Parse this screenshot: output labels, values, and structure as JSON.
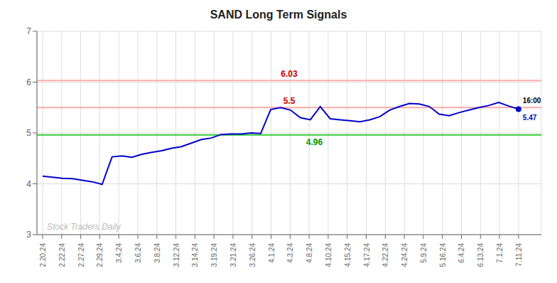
{
  "chart_data": {
    "type": "line",
    "title": "SAND Long Term Signals",
    "x": [
      0,
      0.5208333333333334,
      1.0416666666666667,
      1.5625,
      2.0833333333333335,
      2.6041666666666665,
      3.125,
      3.6458333333333335,
      4.166666666666667,
      4.6875,
      5.208333333333333,
      5.729166666666667,
      6.25,
      6.770833333333333,
      7.291666666666667,
      7.8125,
      8.333333333333334,
      8.854166666666666,
      9.375,
      9.895833333333334,
      10.416666666666666,
      10.9375,
      11.458333333333334,
      11.979166666666666,
      12.5,
      13.020833333333334,
      13.541666666666666,
      14.0625,
      14.583333333333334,
      15.104166666666666,
      15.625,
      16.145833333333332,
      16.666666666666668,
      17.1875,
      17.708333333333332,
      18.229166666666668,
      18.75,
      19.270833333333332,
      19.791666666666668,
      20.3125,
      20.833333333333332,
      21.354166666666668,
      21.875,
      22.395833333333332,
      22.916666666666668,
      23.4375,
      23.958333333333332,
      24.479166666666668,
      25
    ],
    "values": [
      4.15,
      4.13,
      4.11,
      4.1,
      4.07,
      4.04,
      3.99,
      4.53,
      4.55,
      4.52,
      4.58,
      4.62,
      4.65,
      4.7,
      4.73,
      4.8,
      4.87,
      4.9,
      4.97,
      4.98,
      4.98,
      5.0,
      4.99,
      5.46,
      5.5,
      5.45,
      5.3,
      5.26,
      5.52,
      5.28,
      5.26,
      5.24,
      5.22,
      5.26,
      5.32,
      5.45,
      5.52,
      5.58,
      5.57,
      5.52,
      5.37,
      5.34,
      5.4,
      5.45,
      5.5,
      5.54,
      5.6,
      5.53,
      5.47
    ],
    "color": "#0000cc",
    "xlim": [
      -0.3,
      26.2
    ],
    "xticks": [
      {
        "value": 0,
        "label": "2.20.24"
      },
      {
        "value": 1,
        "label": "2.22.24"
      },
      {
        "value": 2,
        "label": "2.27.24"
      },
      {
        "value": 3,
        "label": "2.29.24"
      },
      {
        "value": 4,
        "label": "3.4.24"
      },
      {
        "value": 5,
        "label": "3.6.24"
      },
      {
        "value": 6,
        "label": "3.8.24"
      },
      {
        "value": 7,
        "label": "3.12.24"
      },
      {
        "value": 8,
        "label": "3.14.24"
      },
      {
        "value": 9,
        "label": "3.19.24"
      },
      {
        "value": 10,
        "label": "3.21.24"
      },
      {
        "value": 11,
        "label": "3.26.24"
      },
      {
        "value": 12,
        "label": "4.1.24"
      },
      {
        "value": 13,
        "label": "4.3.24"
      },
      {
        "value": 14,
        "label": "4.8.24"
      },
      {
        "value": 15,
        "label": "4.10.24"
      },
      {
        "value": 16,
        "label": "4.15.24"
      },
      {
        "value": 17,
        "label": "4.17.24"
      },
      {
        "value": 18,
        "label": "4.22.24"
      },
      {
        "value": 19,
        "label": "4.24.24"
      },
      {
        "value": 20,
        "label": "5.9.24"
      },
      {
        "value": 21,
        "label": "5.16.24"
      },
      {
        "value": 22,
        "label": "6.4.24"
      },
      {
        "value": 23,
        "label": "6.13.24"
      },
      {
        "value": 24,
        "label": "7.1.24"
      },
      {
        "value": 25,
        "label": "7.11.24"
      }
    ],
    "ylim": [
      3,
      7
    ],
    "yticks": [
      3,
      4,
      5,
      6,
      7
    ],
    "grid": true,
    "hlines": [
      {
        "value": 6.03,
        "color": "#ffaaaa",
        "label": "6.03",
        "label_color": "#cc0000"
      },
      {
        "value": 5.5,
        "color": "#ffaaaa",
        "label": "5.5",
        "label_color": "#cc0000"
      },
      {
        "value": 4.96,
        "color": "#33cc33",
        "label": "4.96",
        "label_color": "#009900"
      }
    ],
    "end_labels": [
      {
        "text": "16:00",
        "color": "#000000"
      },
      {
        "text": "5.47",
        "color": "#0000cc"
      }
    ],
    "watermark": "Stock Traders Daily",
    "watermark_color": "#bbbbbb"
  }
}
